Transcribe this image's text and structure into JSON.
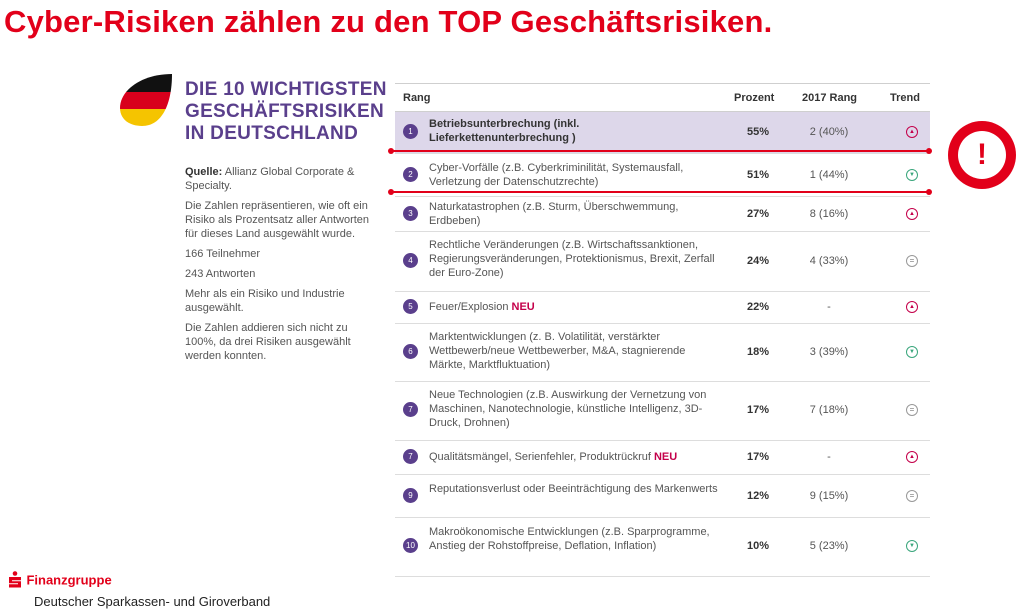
{
  "title": "Cyber-Risiken zählen zu den TOP Geschäftsrisiken.",
  "panel": {
    "heading_lines": [
      "DIE 10 WICHTIGSTEN",
      "GESCHÄFTSRISIKEN",
      "IN DEUTSCHLAND"
    ],
    "source_label": "Quelle:",
    "source_text": "Allianz Global Corporate & Specialty.",
    "notes": [
      "Die Zahlen repräsentieren, wie oft ein Risiko als Prozentsatz aller Antworten für dieses Land ausgewählt wurde.",
      "166 Teilnehmer",
      "243 Antworten",
      "Mehr als ein Risiko und Industrie ausgewählt.",
      "Die Zahlen addieren sich nicht zu 100%, da drei Risiken ausgewählt werden konnten."
    ]
  },
  "table": {
    "headers": {
      "rank": "Rang",
      "percent": "Prozent",
      "prev": "2017 Rang",
      "trend": "Trend"
    },
    "rows": [
      {
        "rank": "1",
        "risk": "Betriebsunterbrechung (inkl. Lieferkettenunterbrechung )",
        "new": "",
        "percent": "55%",
        "prev": "2 (40%)",
        "trend": "up",
        "highlight": true
      },
      {
        "rank": "2",
        "risk": "Cyber-Vorfälle (z.B. Cyberkriminilität, Systemausfall, Verletzung der Datenschutzrechte)",
        "new": "",
        "percent": "51%",
        "prev": "1 (44%)",
        "trend": "down",
        "highlight": false
      },
      {
        "rank": "3",
        "risk": "Naturkatastrophen (z.B. Sturm, Überschwemmung, Erdbeben)",
        "new": "",
        "percent": "27%",
        "prev": "8 (16%)",
        "trend": "up",
        "highlight": false
      },
      {
        "rank": "4",
        "risk": "Rechtliche Veränderungen (z.B. Wirtschaftssanktionen, Regierungsveränderungen, Protektionismus, Brexit, Zerfall der Euro-Zone)",
        "new": "",
        "percent": "24%",
        "prev": "4 (33%)",
        "trend": "eq",
        "highlight": false
      },
      {
        "rank": "5",
        "risk": "Feuer/Explosion",
        "new": "NEU",
        "percent": "22%",
        "prev": "-",
        "trend": "up",
        "highlight": false
      },
      {
        "rank": "6",
        "risk": "Marktentwicklungen (z. B. Volatilität, verstärkter Wettbewerb/neue Wettbewerber, M&A, stagnierende Märkte, Marktfluktuation)",
        "new": "",
        "percent": "18%",
        "prev": "3 (39%)",
        "trend": "down",
        "highlight": false
      },
      {
        "rank": "7",
        "risk": "Neue Technologien (z.B. Auswirkung der Vernetzung von Maschinen, Nanotechnologie, künstliche Intelligenz, 3D-Druck, Drohnen)",
        "new": "",
        "percent": "17%",
        "prev": "7 (18%)",
        "trend": "eq",
        "highlight": false
      },
      {
        "rank": "7",
        "risk": "Qualitätsmängel, Serienfehler, Produktrückruf",
        "new": "NEU",
        "percent": "17%",
        "prev": "-",
        "trend": "up",
        "highlight": false
      },
      {
        "rank": "9",
        "risk": "Reputationsverlust oder Beeinträchtigung des Markenwerts",
        "new": "",
        "percent": "12%",
        "prev": "9 (15%)",
        "trend": "eq",
        "highlight": false
      },
      {
        "rank": "10",
        "risk": "Makroökonomische Entwicklungen (z.B. Sparprogramme, Anstieg der Rohstoffpreise, Deflation, Inflation)",
        "new": "",
        "percent": "10%",
        "prev": "5 (23%)",
        "trend": "down",
        "highlight": false
      }
    ]
  },
  "alert_symbol": "!",
  "logo": {
    "brand": "Finanzgruppe",
    "org": "Deutscher Sparkassen- und Giroverband"
  },
  "colors": {
    "title": "#e2001a",
    "purple": "#5a3f8c",
    "highlight_row": "#ddd7ea",
    "trend_up": "#c4004a",
    "trend_down": "#3aa67c"
  }
}
